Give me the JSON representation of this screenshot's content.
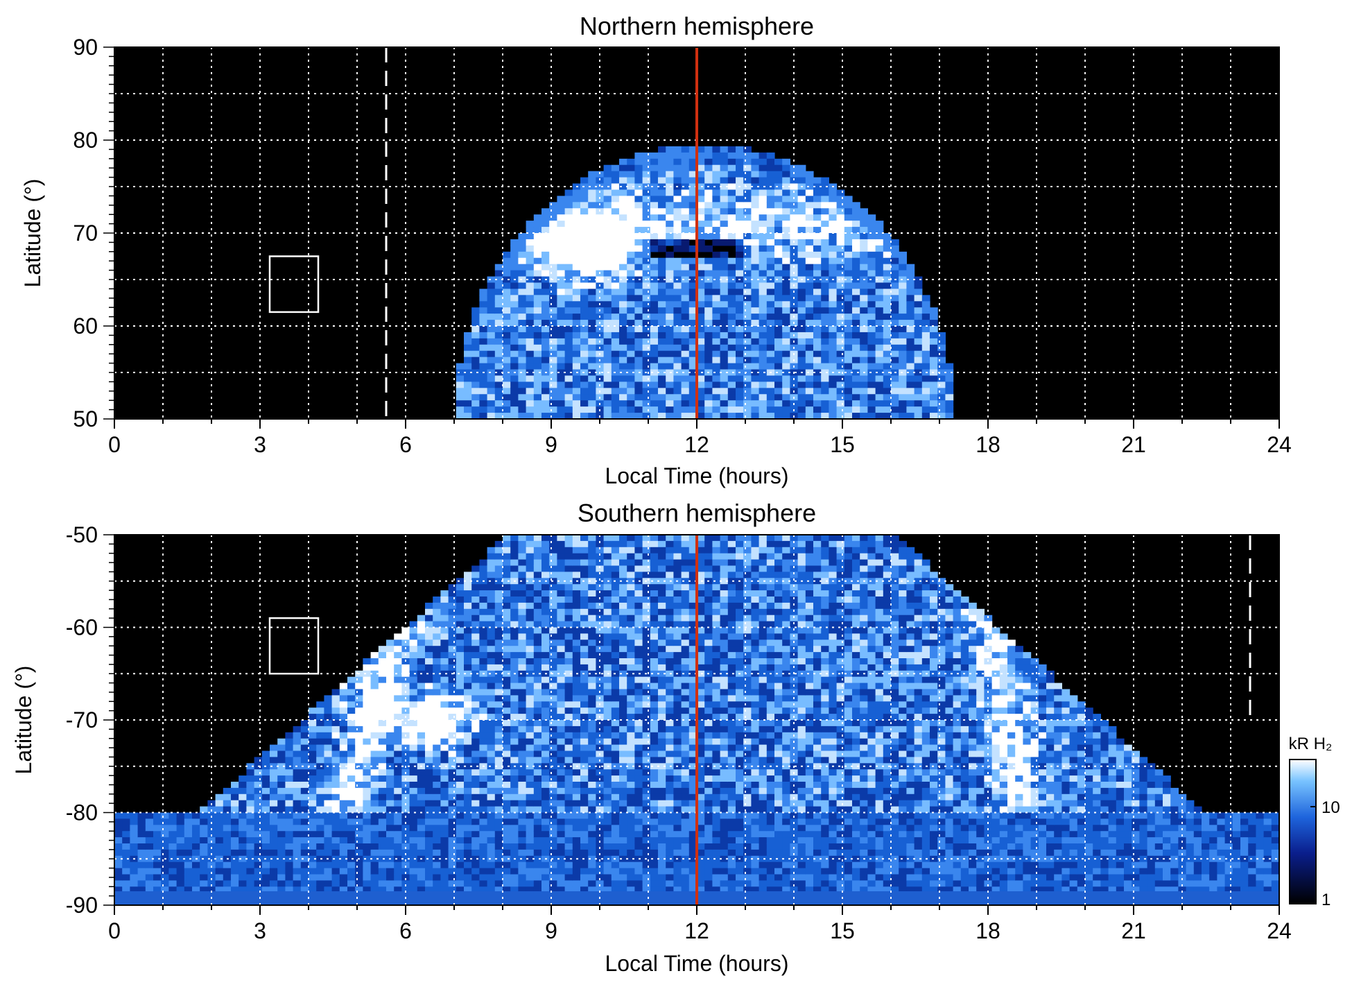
{
  "chart_data": [
    {
      "type": "heatmap",
      "title": "Northern hemisphere",
      "xlabel": "Local Time (hours)",
      "ylabel": "Latitude (°)",
      "xlim": [
        0,
        24
      ],
      "ylim": [
        50,
        90
      ],
      "x_ticks": [
        0,
        3,
        6,
        9,
        12,
        15,
        18,
        21,
        24
      ],
      "y_ticks": [
        50,
        60,
        70,
        80,
        90
      ],
      "grid": true,
      "noon_line_lt": 12,
      "noon_line_color": "#d03010",
      "dashed_line_lt": 5.6,
      "dashed_line_range": [
        50,
        90
      ],
      "box": {
        "lt": [
          3.2,
          4.2
        ],
        "lat": [
          61.5,
          67.5
        ]
      },
      "emission": {
        "coverage_lt": [
          7.0,
          17.3
        ],
        "coverage_edge_lat": 79.5,
        "oval_lat": 71,
        "bright_spot": {
          "lt": 9.8,
          "lat": 68.5
        },
        "dark_band": {
          "lt": [
            11,
            13
          ],
          "lat": 68.5
        }
      }
    },
    {
      "type": "heatmap",
      "title": "Southern hemisphere",
      "xlabel": "Local Time (hours)",
      "ylabel": "Latitude (°)",
      "xlim": [
        0,
        24
      ],
      "ylim": [
        -90,
        -50
      ],
      "x_ticks": [
        0,
        3,
        6,
        9,
        12,
        15,
        18,
        21,
        24
      ],
      "y_ticks": [
        -90,
        -80,
        -70,
        -60,
        -50
      ],
      "grid": true,
      "noon_line_lt": 12,
      "noon_line_color": "#d03010",
      "dashed_line_lt": 23.4,
      "dashed_line_range": [
        -70,
        -50
      ],
      "box": {
        "lt": [
          3.2,
          4.2
        ],
        "lat": [
          -65,
          -59
        ]
      },
      "emission": {
        "coverage_lt": [
          0,
          24
        ],
        "oval_arcs_lt": [
          6.3,
          17.8
        ],
        "bright_spot": {
          "lt": 6.5,
          "lat": -70
        }
      }
    }
  ],
  "colorbar": {
    "label": "kR H₂",
    "ticks": [
      "1",
      "10"
    ],
    "colors": [
      "#000000",
      "#0a1e8c",
      "#1e64dc",
      "#78c3ff",
      "#ffffff"
    ]
  }
}
